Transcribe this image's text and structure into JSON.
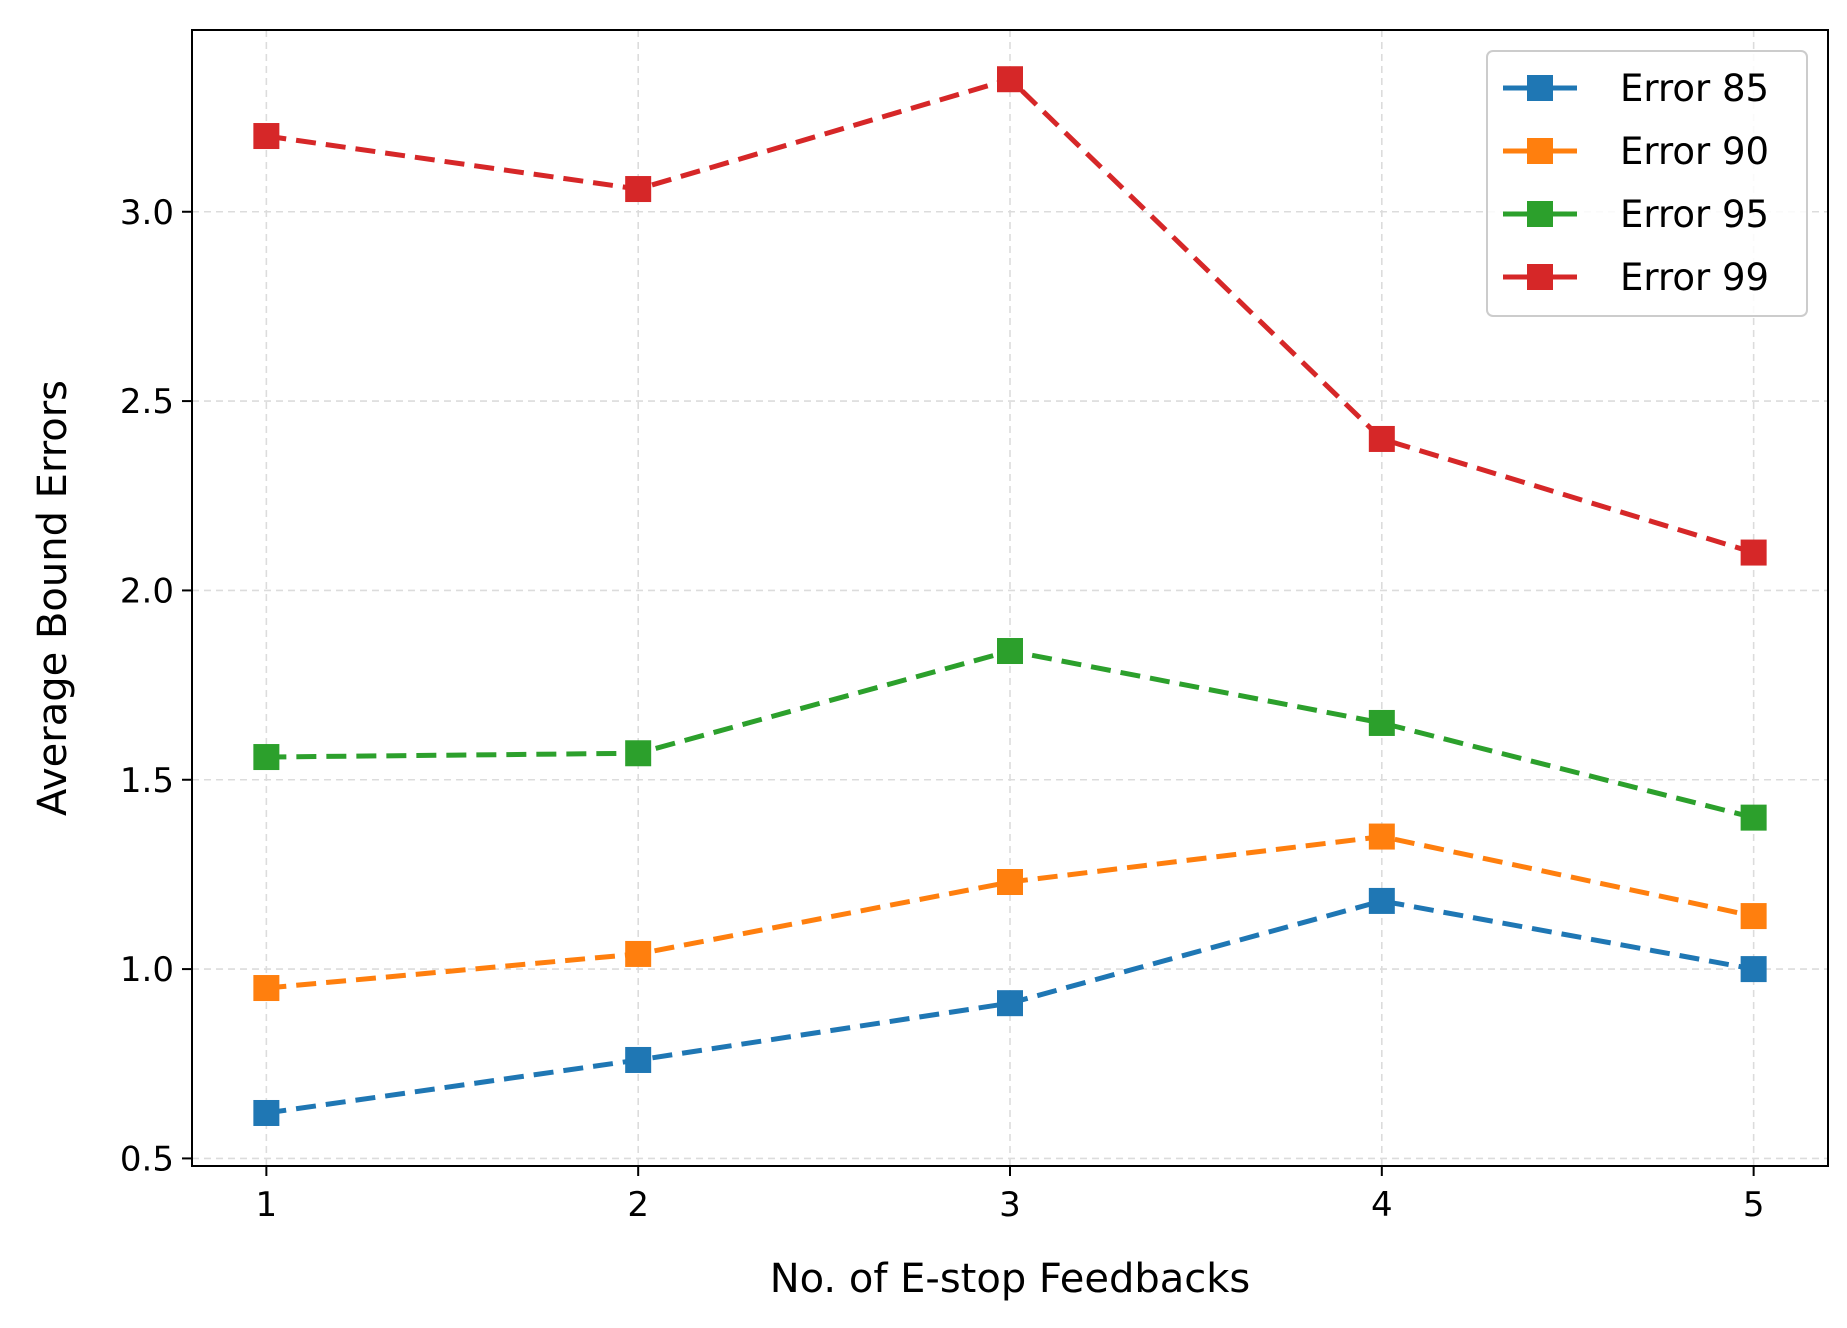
{
  "chart_data": {
    "type": "line",
    "title": "",
    "xlabel": "No. of E-stop Feedbacks",
    "ylabel": "Average Bound Errors",
    "x": [
      1,
      2,
      3,
      4,
      5
    ],
    "xlim": [
      0.8,
      5.2
    ],
    "ylim": [
      0.48,
      3.48
    ],
    "xticks": [
      1,
      2,
      3,
      4,
      5
    ],
    "yticks": [
      0.5,
      1.0,
      1.5,
      2.0,
      2.5,
      3.0
    ],
    "ytick_labels": [
      "0.5",
      "1.0",
      "1.5",
      "2.0",
      "2.5",
      "3.0"
    ],
    "grid": true,
    "legend_position": "top-right",
    "marker": "square",
    "line_style": "dashed",
    "series": [
      {
        "name": "Error 85",
        "color": "#1f77b4",
        "values": [
          0.62,
          0.76,
          0.91,
          1.18,
          1.0
        ]
      },
      {
        "name": "Error 90",
        "color": "#ff7f0e",
        "values": [
          0.95,
          1.04,
          1.23,
          1.35,
          1.14
        ]
      },
      {
        "name": "Error 95",
        "color": "#2ca02c",
        "values": [
          1.56,
          1.57,
          1.84,
          1.65,
          1.4
        ]
      },
      {
        "name": "Error 99",
        "color": "#d62728",
        "values": [
          3.2,
          3.06,
          3.35,
          2.4,
          2.1
        ]
      }
    ]
  }
}
